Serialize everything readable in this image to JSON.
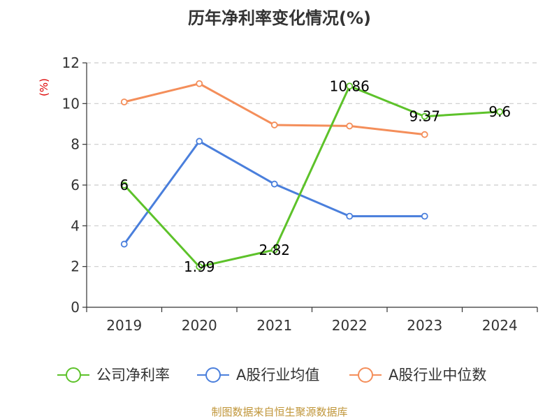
{
  "chart_data": {
    "type": "line",
    "title": "历年净利率变化情况(%)",
    "ylabel": "(%)",
    "xlabel": "",
    "categories": [
      "2019",
      "2020",
      "2021",
      "2022",
      "2023",
      "2024"
    ],
    "ylim": [
      0,
      12
    ],
    "yticks": [
      0,
      2,
      4,
      6,
      8,
      10,
      12
    ],
    "grid": true,
    "legend_position": "bottom",
    "series": [
      {
        "name": "公司净利率",
        "color": "#5dc22a",
        "values": [
          6,
          1.99,
          2.82,
          10.86,
          9.37,
          9.6
        ],
        "labels": [
          "6",
          "1.99",
          "2.82",
          "10.86",
          "9.37",
          "9.6"
        ]
      },
      {
        "name": "A股行业均值",
        "color": "#4a7fdc",
        "values": [
          3.1,
          8.15,
          6.05,
          4.47,
          4.47,
          null
        ]
      },
      {
        "name": "A股行业中位数",
        "color": "#f48e5a",
        "values": [
          10.08,
          10.98,
          8.95,
          8.9,
          8.48,
          null
        ]
      }
    ]
  },
  "footer": {
    "text": "制图数据来自恒生聚源数据库",
    "color": "#c0963a"
  },
  "colors": {
    "ylabel": "#dd0000",
    "axis": "#333333",
    "grid": "#cccccc"
  }
}
